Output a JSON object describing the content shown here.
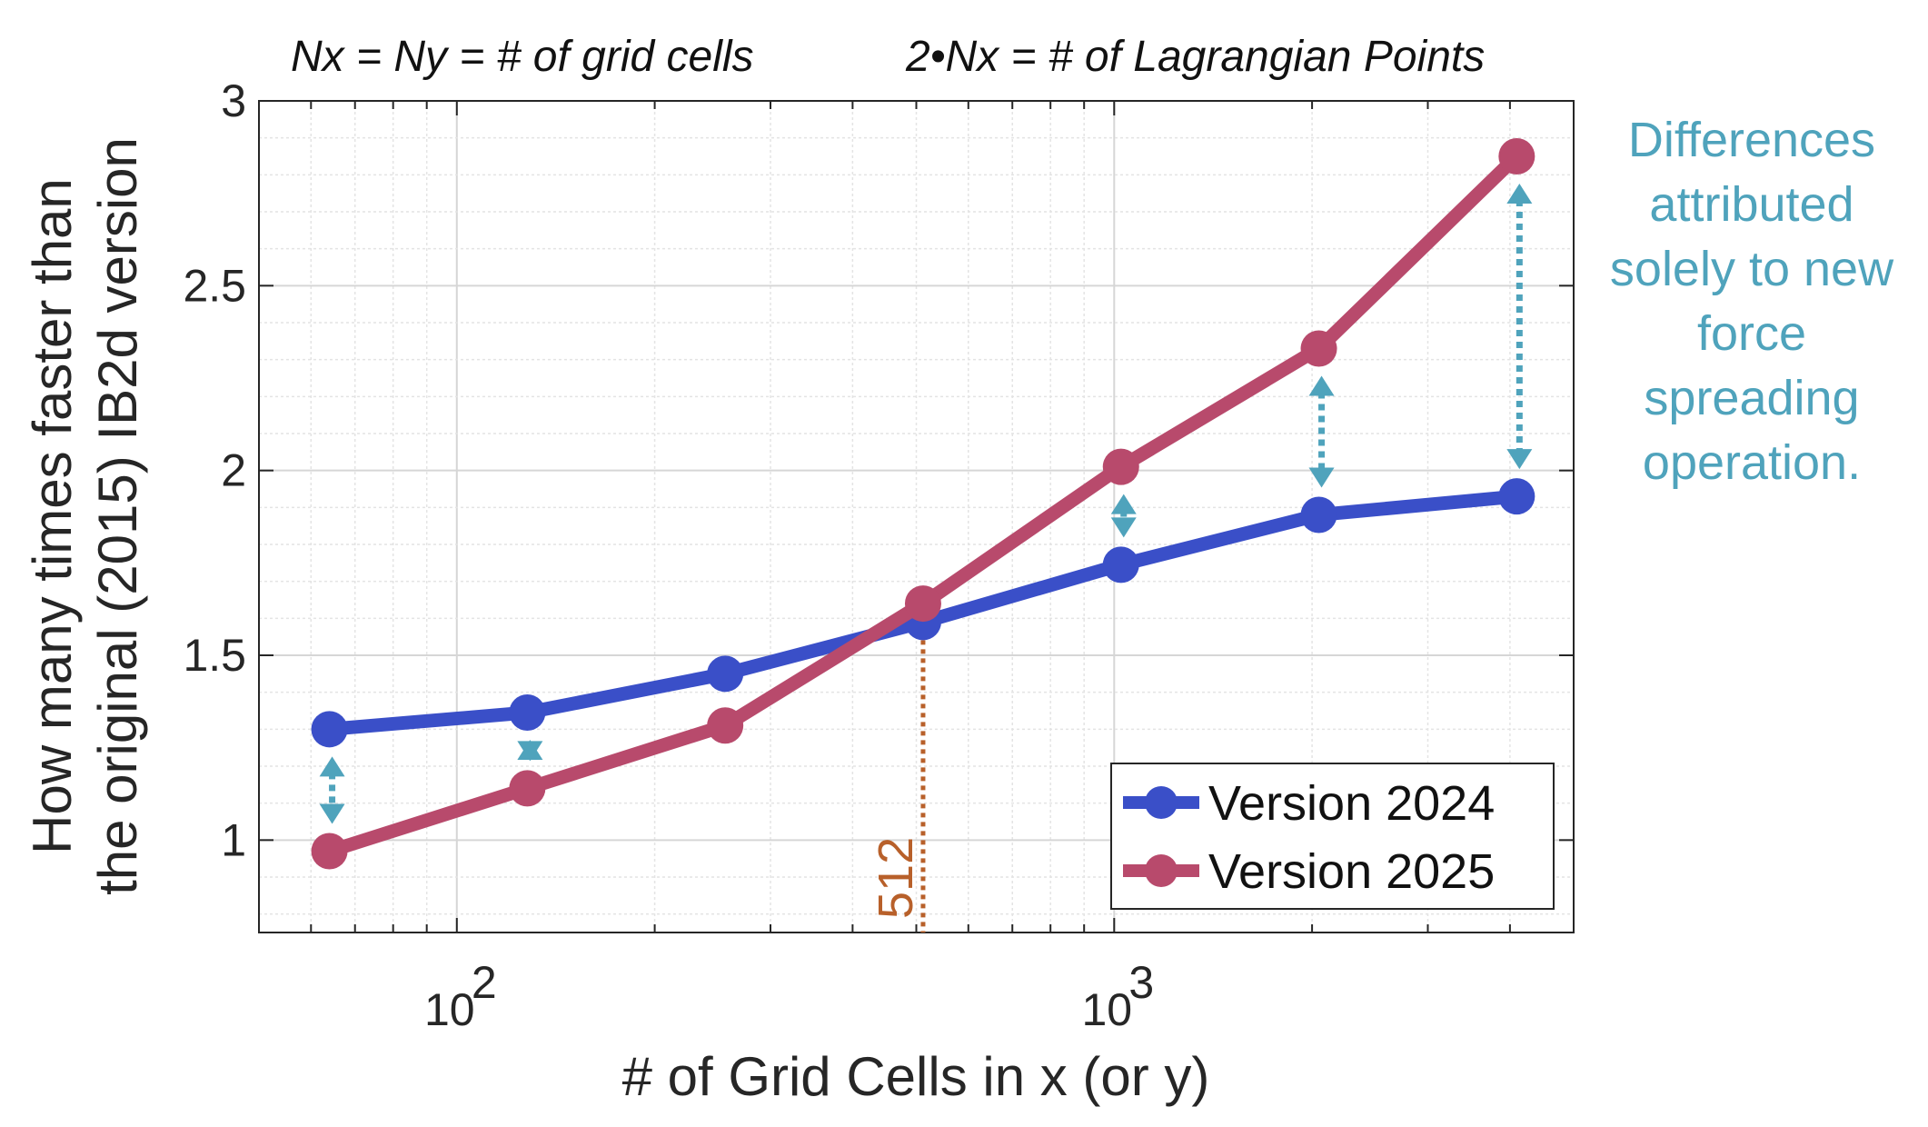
{
  "chart_data": {
    "type": "line",
    "title_left": "Nx = Ny = # of grid cells",
    "title_right": "2•Nx = # of Lagrangian Points",
    "xlabel": "# of Grid Cells in x (or y)",
    "ylabel_line1": "How many times faster than",
    "ylabel_line2": "the original (2015) IB2d version",
    "xscale": "log",
    "xlim": [
      50,
      5000
    ],
    "ylim": [
      0.75,
      3
    ],
    "xticks": [
      {
        "value": 100,
        "base": "10",
        "exp": "2"
      },
      {
        "value": 1000,
        "base": "10",
        "exp": "3"
      }
    ],
    "yticks": [
      1,
      1.5,
      2,
      2.5,
      3
    ],
    "ytick_labels": [
      "1",
      "1.5",
      "2",
      "2.5",
      "3"
    ],
    "grid": true,
    "minor_grid": true,
    "legend_position": "bottom-right",
    "x": [
      64,
      128,
      256,
      512,
      1024,
      2048,
      4096
    ],
    "series": [
      {
        "name": "Version 2024",
        "color": "#3a4fc8",
        "values": [
          1.3,
          1.345,
          1.45,
          1.59,
          1.745,
          1.88,
          1.93
        ]
      },
      {
        "name": "Version 2025",
        "color": "#b84a6c",
        "values": [
          0.97,
          1.14,
          1.31,
          1.64,
          2.01,
          2.33,
          2.85
        ]
      }
    ],
    "difference_arrows_at_x": [
      64,
      128,
      1024,
      2048,
      4096
    ],
    "arrow_color": "#4fa3bc",
    "marker_line": {
      "x": 512,
      "label": "512",
      "color": "#b8602a"
    },
    "annotation": [
      "Differences",
      "attributed",
      "solely to new",
      "force",
      "spreading",
      "operation."
    ]
  }
}
